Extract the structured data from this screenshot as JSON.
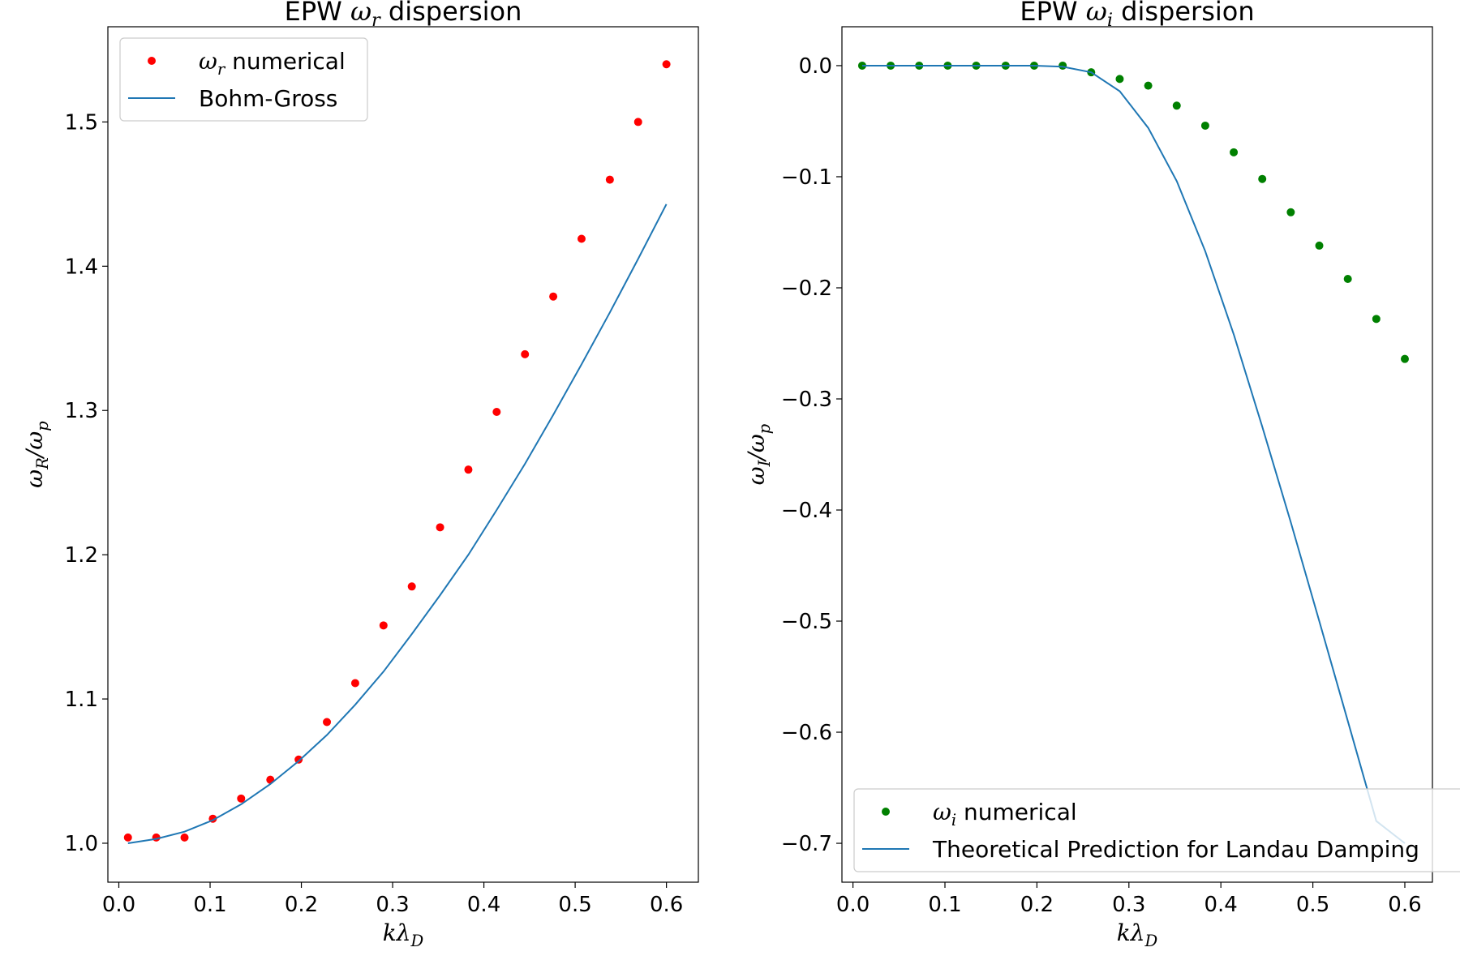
{
  "chart_data": [
    {
      "type": "scatter",
      "title": "EPW ω_r dispersion",
      "title_parts": {
        "pre": "EPW ",
        "sym": "ω",
        "sub": "r",
        "post": " dispersion"
      },
      "xlabel": "kλ_D",
      "ylabel": "ω_R/ω_p",
      "xlim": [
        -0.012,
        0.635
      ],
      "ylim": [
        0.973,
        1.566
      ],
      "xticks": [
        0.0,
        0.1,
        0.2,
        0.3,
        0.4,
        0.5,
        0.6
      ],
      "xtick_labels": [
        "0.0",
        "0.1",
        "0.2",
        "0.3",
        "0.4",
        "0.5",
        "0.6"
      ],
      "yticks": [
        1.0,
        1.1,
        1.2,
        1.3,
        1.4,
        1.5
      ],
      "ytick_labels": [
        "1.0",
        "1.1",
        "1.2",
        "1.3",
        "1.4",
        "1.5"
      ],
      "legend_position": "upper-left",
      "series": [
        {
          "name": "ω_r numerical",
          "legend_parts": {
            "sym": "ω",
            "sub": "r",
            "post": " numerical"
          },
          "kind": "scatter",
          "color": "#ff0000",
          "x": [
            0.01,
            0.041,
            0.072,
            0.103,
            0.134,
            0.166,
            0.197,
            0.228,
            0.259,
            0.29,
            0.321,
            0.352,
            0.383,
            0.414,
            0.445,
            0.476,
            0.507,
            0.538,
            0.569,
            0.6
          ],
          "y": [
            1.004,
            1.004,
            1.004,
            1.017,
            1.031,
            1.044,
            1.058,
            1.084,
            1.111,
            1.151,
            1.178,
            1.219,
            1.259,
            1.299,
            1.339,
            1.379,
            1.419,
            1.46,
            1.5,
            1.54
          ]
        },
        {
          "name": "Bohm-Gross",
          "legend_parts": {
            "sym": "",
            "sub": "",
            "post": "Bohm-Gross"
          },
          "kind": "line",
          "color": "#1f77b4",
          "x": [
            0.01,
            0.041,
            0.072,
            0.103,
            0.134,
            0.166,
            0.197,
            0.228,
            0.259,
            0.29,
            0.321,
            0.352,
            0.383,
            0.414,
            0.445,
            0.476,
            0.507,
            0.538,
            0.569,
            0.6
          ],
          "y": [
            1.0,
            1.003,
            1.008,
            1.016,
            1.027,
            1.041,
            1.057,
            1.075,
            1.096,
            1.119,
            1.145,
            1.172,
            1.2,
            1.231,
            1.263,
            1.297,
            1.332,
            1.368,
            1.405,
            1.443
          ]
        }
      ]
    },
    {
      "type": "scatter",
      "title": "EPW ω_i dispersion",
      "title_parts": {
        "pre": "EPW ",
        "sym": "ω",
        "sub": "i",
        "post": " dispersion"
      },
      "xlabel": "kλ_D",
      "ylabel": "ω_I/ω_p",
      "xlim": [
        -0.012,
        0.63
      ],
      "ylim": [
        -0.735,
        0.035
      ],
      "xticks": [
        0.0,
        0.1,
        0.2,
        0.3,
        0.4,
        0.5,
        0.6
      ],
      "xtick_labels": [
        "0.0",
        "0.1",
        "0.2",
        "0.3",
        "0.4",
        "0.5",
        "0.6"
      ],
      "yticks": [
        0.0,
        -0.1,
        -0.2,
        -0.3,
        -0.4,
        -0.5,
        -0.6,
        -0.7
      ],
      "ytick_labels": [
        "0.0",
        "−0.1",
        "−0.2",
        "−0.3",
        "−0.4",
        "−0.5",
        "−0.6",
        "−0.7"
      ],
      "legend_position": "lower-left",
      "series": [
        {
          "name": "ω_i numerical",
          "legend_parts": {
            "sym": "ω",
            "sub": "i",
            "post": " numerical"
          },
          "kind": "scatter",
          "color": "#008000",
          "x": [
            0.01,
            0.041,
            0.072,
            0.103,
            0.134,
            0.166,
            0.197,
            0.228,
            0.259,
            0.29,
            0.321,
            0.352,
            0.383,
            0.414,
            0.445,
            0.476,
            0.507,
            0.538,
            0.569,
            0.6
          ],
          "y": [
            0.0,
            0.0,
            0.0,
            0.0,
            0.0,
            0.0,
            0.0,
            0.0,
            -0.006,
            -0.012,
            -0.018,
            -0.036,
            -0.054,
            -0.078,
            -0.102,
            -0.132,
            -0.162,
            -0.192,
            -0.228,
            -0.264
          ]
        },
        {
          "name": "Theoretical Prediction for Landau Damping",
          "legend_parts": {
            "sym": "",
            "sub": "",
            "post": "Theoretical Prediction for Landau Damping"
          },
          "kind": "line",
          "color": "#1f77b4",
          "x": [
            0.01,
            0.041,
            0.072,
            0.103,
            0.134,
            0.166,
            0.197,
            0.228,
            0.259,
            0.29,
            0.321,
            0.352,
            0.383,
            0.414,
            0.445,
            0.476,
            0.507,
            0.538,
            0.569,
            0.6
          ],
          "y": [
            0.0,
            0.0,
            0.0,
            0.0,
            0.0,
            0.0,
            0.0,
            -0.001,
            -0.006,
            -0.023,
            -0.056,
            -0.104,
            -0.167,
            -0.242,
            -0.325,
            -0.411,
            -0.5,
            -0.59,
            -0.68,
            -0.7
          ]
        }
      ]
    }
  ]
}
